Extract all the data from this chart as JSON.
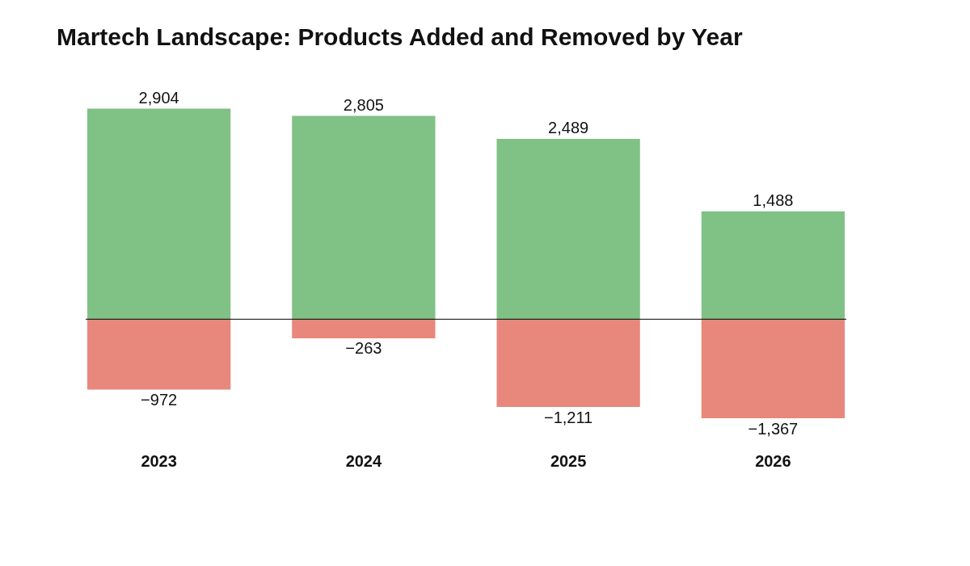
{
  "chart_data": {
    "type": "bar",
    "title": "Martech Landscape: Products Added and Removed by Year",
    "categories": [
      "2023",
      "2024",
      "2025",
      "2026"
    ],
    "stacked": true,
    "series": [
      {
        "color": "#80c185",
        "values": [
          2904,
          2805,
          2489,
          1488
        ],
        "value_labels": [
          "2,904",
          "2,805",
          "2,489",
          "1,488"
        ]
      },
      {
        "color": "#e8877b",
        "values": [
          -972,
          -263,
          -1211,
          -1367
        ],
        "value_labels": [
          "−972",
          "−263",
          "−1,211",
          "−1,367"
        ]
      }
    ],
    "grid": false,
    "legend": false
  }
}
